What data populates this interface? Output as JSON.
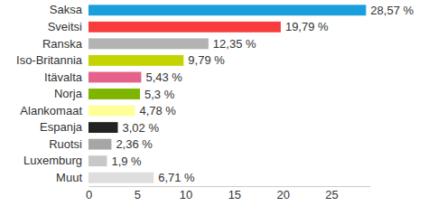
{
  "chart_data": {
    "type": "bar",
    "orientation": "horizontal",
    "categories": [
      "Saksa",
      "Sveitsi",
      "Ranska",
      "Iso-Britannia",
      "Itävalta",
      "Norja",
      "Alankomaat",
      "Espanja",
      "Ruotsi",
      "Luxemburg",
      "Muut"
    ],
    "values": [
      28.57,
      19.79,
      12.35,
      9.79,
      5.43,
      5.3,
      4.78,
      3.02,
      2.36,
      1.9,
      6.71
    ],
    "value_labels": [
      "28,57 %",
      "19,79 %",
      "12,35 %",
      "9,79 %",
      "5,43 %",
      "5,3 %",
      "4,78 %",
      "3,02 %",
      "2,36 %",
      "1,9 %",
      "6,71 %"
    ],
    "data_labels": true,
    "colors": [
      "#1a9fdc",
      "#f83c3c",
      "#b3b3b3",
      "#c3d400",
      "#e6628c",
      "#7db500",
      "#ffff99",
      "#222222",
      "#a6a6a6",
      "#c8c8c8",
      "#dedede"
    ],
    "xlim": [
      0,
      29
    ],
    "xticks": [
      0,
      5,
      10,
      15,
      20,
      25
    ],
    "grid": false
  }
}
